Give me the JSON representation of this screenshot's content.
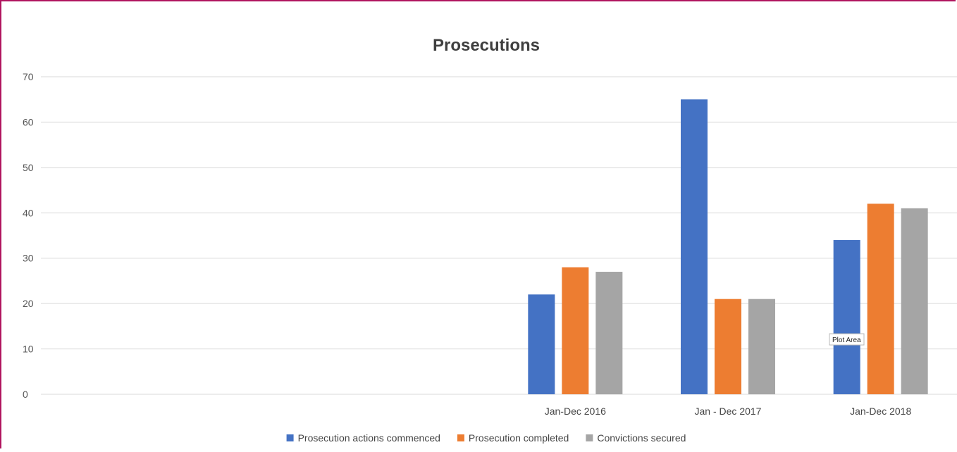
{
  "chart_data": {
    "type": "bar",
    "title": "Prosecutions",
    "xlabel": "",
    "ylabel": "",
    "ylim": [
      0,
      70
    ],
    "yticks": [
      0,
      10,
      20,
      30,
      40,
      50,
      60,
      70
    ],
    "grid": true,
    "legend_position": "bottom",
    "categories": [
      "",
      "",
      "",
      "Jan-Dec 2016",
      "Jan - Dec 2017",
      "Jan-Dec 2018"
    ],
    "series": [
      {
        "name": "Prosecution actions commenced",
        "color": "#4472c4",
        "values": [
          null,
          null,
          null,
          22,
          65,
          34
        ]
      },
      {
        "name": "Prosecution completed",
        "color": "#ed7d31",
        "values": [
          null,
          null,
          null,
          28,
          21,
          42
        ]
      },
      {
        "name": "Convictions secured",
        "color": "#a5a5a5",
        "values": [
          null,
          null,
          null,
          27,
          21,
          41
        ]
      }
    ]
  },
  "tooltip": {
    "label": "Plot Area"
  }
}
